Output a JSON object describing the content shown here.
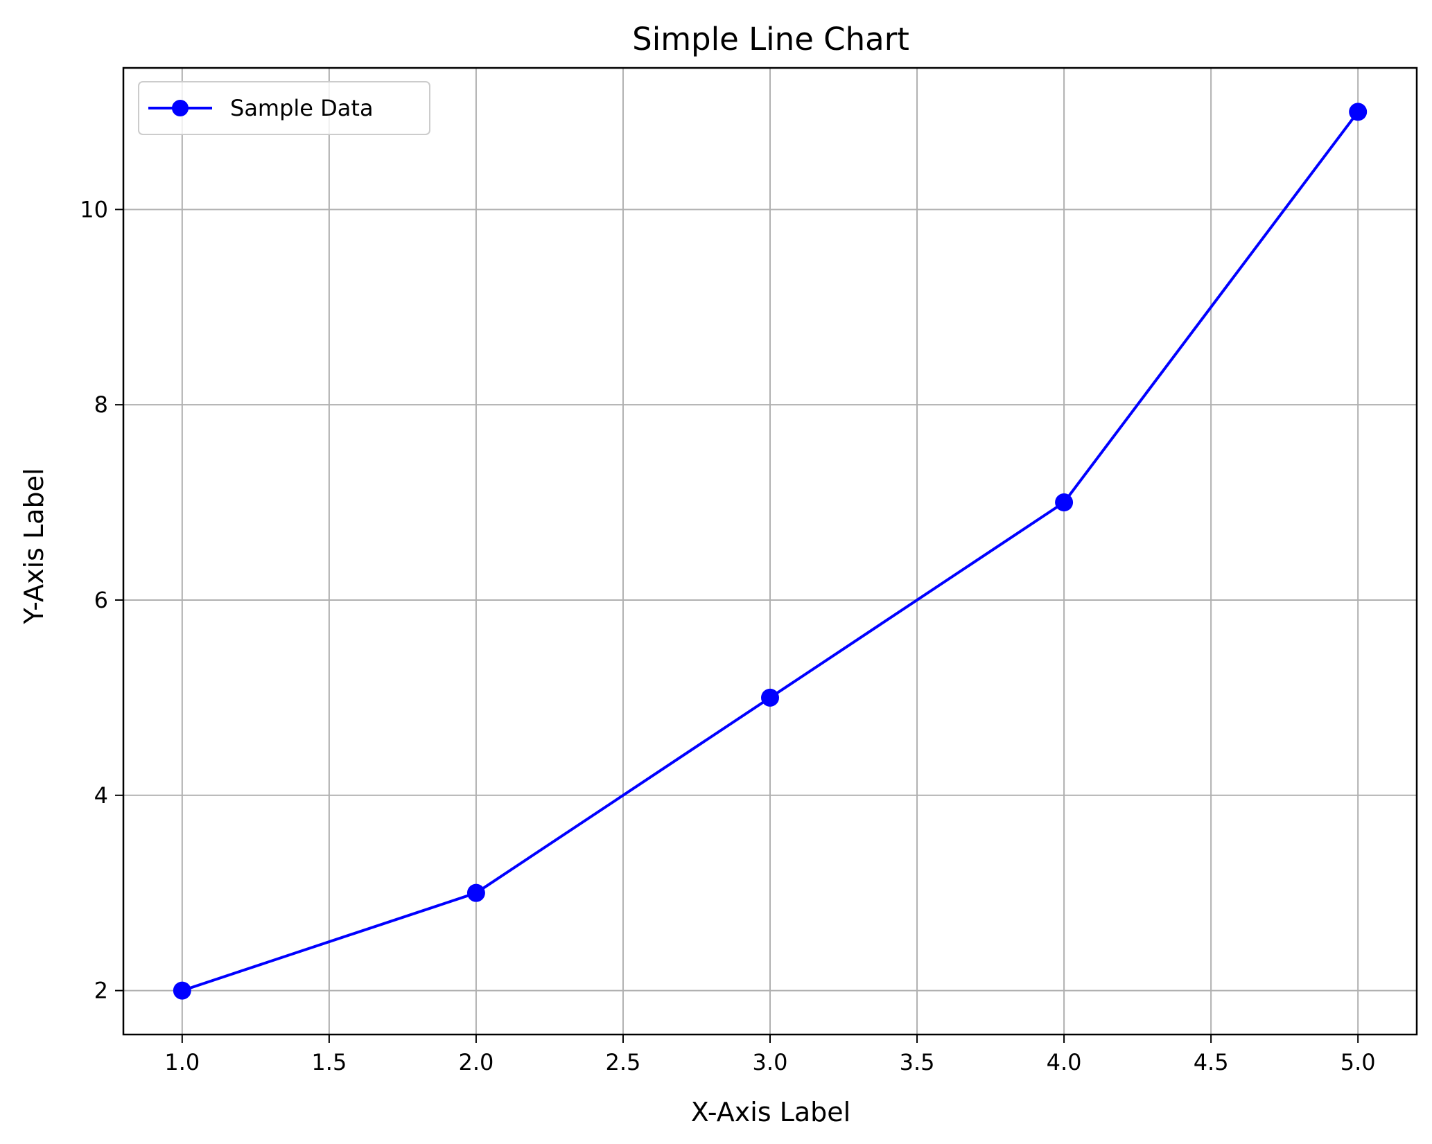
{
  "chart_data": {
    "type": "line",
    "title": "Simple Line Chart",
    "xlabel": "X-Axis Label",
    "ylabel": "Y-Axis Label",
    "x": [
      1.0,
      2.0,
      3.0,
      4.0,
      5.0
    ],
    "series": [
      {
        "name": "Sample Data",
        "values": [
          2,
          3,
          5,
          7,
          11
        ],
        "color": "#0000ff",
        "marker": "circle"
      }
    ],
    "xlim": [
      0.8,
      5.2
    ],
    "ylim": [
      1.55,
      11.45
    ],
    "xticks": [
      1.0,
      1.5,
      2.0,
      2.5,
      3.0,
      3.5,
      4.0,
      4.5,
      5.0
    ],
    "xtick_labels": [
      "1.0",
      "1.5",
      "2.0",
      "2.5",
      "3.0",
      "3.5",
      "4.0",
      "4.5",
      "5.0"
    ],
    "yticks": [
      2,
      4,
      6,
      8,
      10
    ],
    "ytick_labels": [
      "2",
      "4",
      "6",
      "8",
      "10"
    ],
    "grid": true,
    "legend_position": "upper-left",
    "colors": {
      "grid": "#b0b0b0",
      "axes": "#000000",
      "background": "#ffffff"
    }
  }
}
